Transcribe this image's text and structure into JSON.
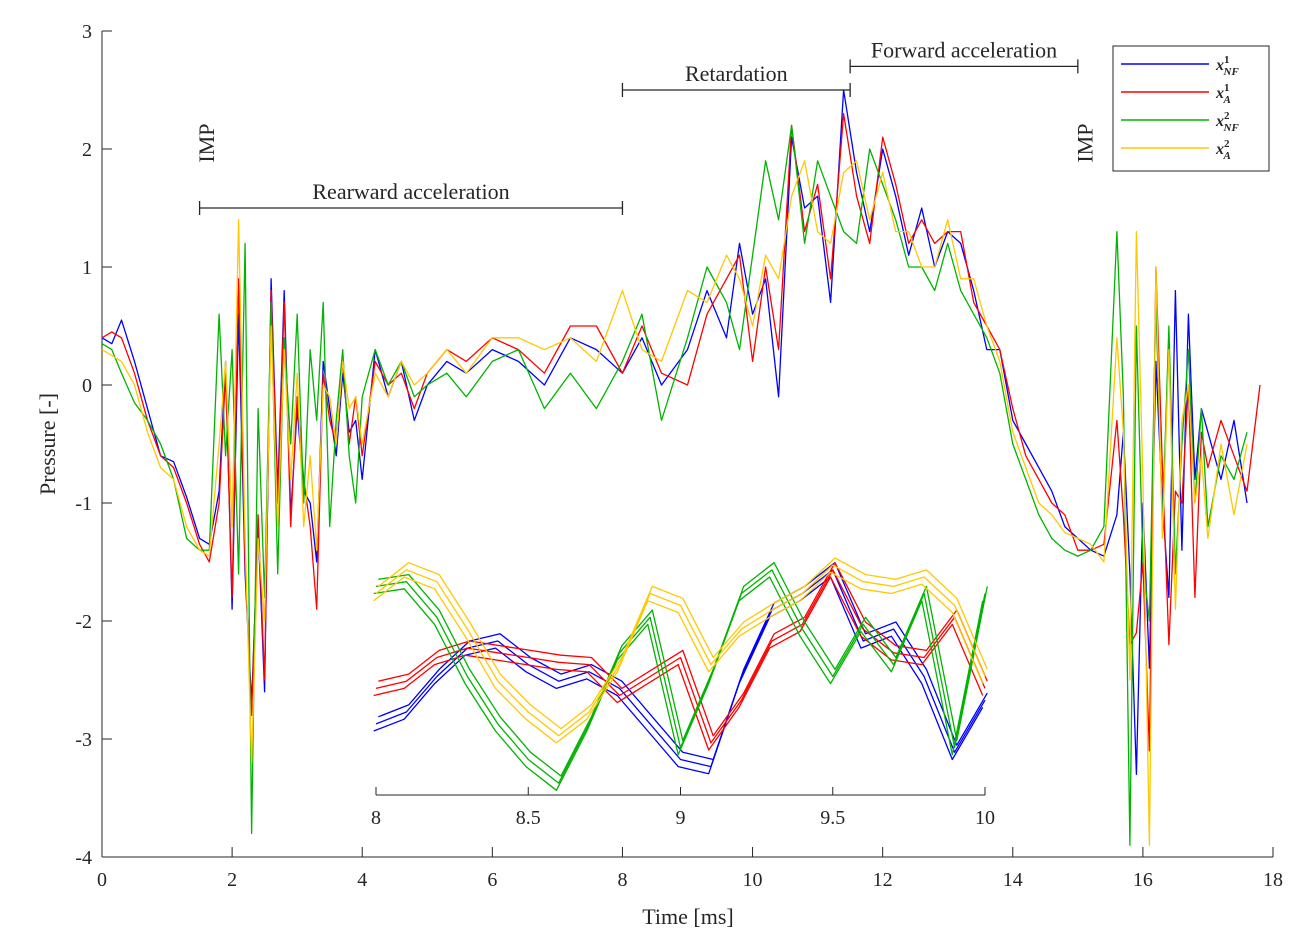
{
  "chart_data": [
    {
      "type": "line",
      "xlabel": "Time [ms]",
      "ylabel": "Pressure [-]",
      "xlim": [
        0,
        18
      ],
      "ylim": [
        -4,
        3
      ],
      "xticks": [
        "0",
        "2",
        "4",
        "6",
        "8",
        "10",
        "12",
        "14",
        "16",
        "18"
      ],
      "yticks": [
        "3",
        "2",
        "1",
        "0",
        "-1",
        "-2",
        "-3",
        "-4"
      ],
      "grid": false,
      "legend_placement": "top-right",
      "legend": {
        "entries": [
          {
            "base": "x",
            "sup": "1",
            "sub": "NF",
            "color": "#0000ff"
          },
          {
            "base": "x",
            "sup": "1",
            "sub": "A",
            "color": "#ff0000"
          },
          {
            "base": "x",
            "sup": "2",
            "sub": "NF",
            "color": "#00b400"
          },
          {
            "base": "x",
            "sup": "2",
            "sub": "A",
            "color": "#ffc800"
          }
        ]
      },
      "annotations": [
        {
          "text": "IMP",
          "x": 1.6,
          "y": 2.05,
          "rotation": -90
        },
        {
          "text": "IMP",
          "x": 15.1,
          "y": 2.05,
          "rotation": -90
        },
        {
          "text": "Rearward acceleration",
          "bracket": [
            1.5,
            8.0
          ],
          "y": 1.5
        },
        {
          "text": "Retardation",
          "bracket": [
            8.0,
            11.5
          ],
          "y": 2.5
        },
        {
          "text": "Forward acceleration",
          "bracket": [
            11.5,
            15.0
          ],
          "y": 2.7
        }
      ],
      "series": [
        {
          "color": "#0000ff",
          "x": [
            0,
            0.15,
            0.3,
            0.5,
            0.7,
            0.9,
            1.1,
            1.3,
            1.5,
            1.65,
            1.8,
            1.9,
            2.0,
            2.1,
            2.2,
            2.3,
            2.4,
            2.5,
            2.6,
            2.7,
            2.8,
            2.9,
            3.0,
            3.1,
            3.2,
            3.3,
            3.4,
            3.5,
            3.6,
            3.7,
            3.8,
            3.9,
            4.0,
            4.2,
            4.4,
            4.6,
            4.8,
            5.0,
            5.3,
            5.6,
            6.0,
            6.4,
            6.8,
            7.2,
            7.6,
            8.0,
            8.3,
            8.6,
            9.0,
            9.3,
            9.6,
            9.8,
            10.0,
            10.2,
            10.4,
            10.6,
            10.8,
            11.0,
            11.2,
            11.4,
            11.6,
            11.8,
            12.0,
            12.2,
            12.4,
            12.6,
            12.8,
            13.0,
            13.2,
            13.4,
            13.6,
            13.8,
            14.0,
            14.2,
            14.4,
            14.6,
            14.8,
            15.0,
            15.2,
            15.4,
            15.6,
            15.7,
            15.8,
            15.9,
            16.0,
            16.1,
            16.2,
            16.3,
            16.4,
            16.5,
            16.6,
            16.7,
            16.8,
            16.9,
            17.0,
            17.2,
            17.4,
            17.6
          ],
          "values": [
            0.4,
            0.35,
            0.55,
            0.2,
            -0.2,
            -0.6,
            -0.65,
            -0.95,
            -1.3,
            -1.35,
            -0.9,
            0.2,
            -1.9,
            0.6,
            -1.6,
            -2.7,
            -1.2,
            -2.6,
            0.9,
            -0.9,
            0.8,
            -1.1,
            -0.2,
            -0.9,
            -1.0,
            -1.5,
            0.2,
            -0.2,
            -0.6,
            0.1,
            -0.4,
            -0.3,
            -0.8,
            0.3,
            -0.1,
            0.2,
            -0.3,
            0.0,
            0.2,
            0.1,
            0.3,
            0.2,
            0.0,
            0.4,
            0.3,
            0.1,
            0.4,
            0.0,
            0.3,
            0.8,
            0.4,
            1.2,
            0.6,
            0.9,
            -0.1,
            2.1,
            1.5,
            1.6,
            0.7,
            2.5,
            1.8,
            1.3,
            2.0,
            1.6,
            1.1,
            1.5,
            1.0,
            1.3,
            1.2,
            0.8,
            0.3,
            0.3,
            -0.3,
            -0.5,
            -0.7,
            -0.9,
            -1.2,
            -1.3,
            -1.4,
            -1.45,
            -1.1,
            -0.4,
            -1.6,
            -3.3,
            -1.0,
            -2.4,
            0.2,
            -1.0,
            -1.8,
            0.8,
            -1.4,
            0.6,
            -0.8,
            -0.2,
            -0.4,
            -0.8,
            -0.3,
            -1.0
          ]
        },
        {
          "color": "#ff0000",
          "x": [
            0,
            0.15,
            0.3,
            0.5,
            0.7,
            0.9,
            1.1,
            1.3,
            1.5,
            1.65,
            1.8,
            1.9,
            2.0,
            2.1,
            2.2,
            2.3,
            2.4,
            2.5,
            2.6,
            2.7,
            2.8,
            2.9,
            3.0,
            3.1,
            3.2,
            3.3,
            3.4,
            3.5,
            3.6,
            3.7,
            3.8,
            3.9,
            4.0,
            4.2,
            4.4,
            4.6,
            4.8,
            5.0,
            5.3,
            5.6,
            6.0,
            6.4,
            6.8,
            7.2,
            7.6,
            8.0,
            8.3,
            8.6,
            9.0,
            9.3,
            9.6,
            9.8,
            10.0,
            10.2,
            10.4,
            10.6,
            10.8,
            11.0,
            11.2,
            11.4,
            11.6,
            11.8,
            12.0,
            12.2,
            12.4,
            12.6,
            12.8,
            13.0,
            13.2,
            13.4,
            13.6,
            13.8,
            14.0,
            14.2,
            14.4,
            14.6,
            14.8,
            15.0,
            15.2,
            15.4,
            15.6,
            15.7,
            15.8,
            15.9,
            16.0,
            16.1,
            16.2,
            16.3,
            16.4,
            16.5,
            16.6,
            16.7,
            16.8,
            16.9,
            17.0,
            17.2,
            17.4,
            17.6,
            17.8
          ],
          "values": [
            0.4,
            0.45,
            0.4,
            0.1,
            -0.3,
            -0.6,
            -0.7,
            -1.0,
            -1.35,
            -1.5,
            -1.0,
            0.1,
            -1.8,
            0.9,
            -1.5,
            -2.8,
            -1.1,
            -2.5,
            0.8,
            -1.0,
            0.7,
            -1.2,
            -0.1,
            -0.8,
            -1.2,
            -1.9,
            0.1,
            -0.3,
            -0.5,
            0.2,
            -0.5,
            -0.1,
            -0.6,
            0.2,
            0.0,
            0.1,
            -0.2,
            0.1,
            0.3,
            0.2,
            0.4,
            0.3,
            0.1,
            0.5,
            0.5,
            0.1,
            0.5,
            0.1,
            0.0,
            0.6,
            0.9,
            1.1,
            0.2,
            1.0,
            0.3,
            2.2,
            1.3,
            1.7,
            0.9,
            2.3,
            1.6,
            1.2,
            2.1,
            1.7,
            1.2,
            1.4,
            1.2,
            1.3,
            1.3,
            0.7,
            0.5,
            0.3,
            -0.2,
            -0.6,
            -0.8,
            -1.0,
            -1.1,
            -1.4,
            -1.4,
            -1.35,
            -0.3,
            -1.1,
            -2.2,
            -2.1,
            -1.5,
            -3.1,
            1.0,
            -0.7,
            -2.2,
            -0.9,
            -1.0,
            0.0,
            -1.8,
            -0.4,
            -0.7,
            -0.3,
            -0.6,
            -0.9,
            0.0
          ]
        },
        {
          "color": "#00b400",
          "x": [
            0,
            0.15,
            0.3,
            0.5,
            0.7,
            0.9,
            1.1,
            1.3,
            1.5,
            1.65,
            1.8,
            1.9,
            2.0,
            2.1,
            2.2,
            2.3,
            2.4,
            2.5,
            2.6,
            2.7,
            2.8,
            2.9,
            3.0,
            3.1,
            3.2,
            3.3,
            3.4,
            3.5,
            3.6,
            3.7,
            3.8,
            3.9,
            4.0,
            4.2,
            4.4,
            4.6,
            4.8,
            5.0,
            5.3,
            5.6,
            6.0,
            6.4,
            6.8,
            7.2,
            7.6,
            8.0,
            8.3,
            8.6,
            9.0,
            9.3,
            9.6,
            9.8,
            10.0,
            10.2,
            10.4,
            10.6,
            10.8,
            11.0,
            11.2,
            11.4,
            11.6,
            11.8,
            12.0,
            12.2,
            12.4,
            12.6,
            12.8,
            13.0,
            13.2,
            13.4,
            13.6,
            13.8,
            14.0,
            14.2,
            14.4,
            14.6,
            14.8,
            15.0,
            15.2,
            15.4,
            15.6,
            15.7,
            15.8,
            15.9,
            16.0,
            16.1,
            16.2,
            16.3,
            16.4,
            16.5,
            16.6,
            16.7,
            16.8,
            16.9,
            17.0,
            17.2,
            17.4,
            17.6
          ],
          "values": [
            0.35,
            0.3,
            0.1,
            -0.15,
            -0.3,
            -0.5,
            -0.8,
            -1.3,
            -1.4,
            -1.4,
            0.6,
            -0.6,
            0.3,
            -1.6,
            1.2,
            -3.8,
            -0.2,
            -1.8,
            0.7,
            -1.6,
            0.4,
            -0.5,
            0.6,
            -1.0,
            0.3,
            -0.3,
            0.7,
            -1.2,
            -0.3,
            0.3,
            -0.6,
            -1.0,
            -0.1,
            0.3,
            0.0,
            0.2,
            -0.1,
            0.0,
            0.1,
            -0.1,
            0.2,
            0.3,
            -0.2,
            0.1,
            -0.2,
            0.2,
            0.6,
            -0.3,
            0.4,
            1.0,
            0.7,
            0.3,
            1.1,
            1.9,
            1.4,
            2.2,
            1.2,
            1.9,
            1.6,
            1.3,
            1.2,
            2.0,
            1.7,
            1.4,
            1.0,
            1.0,
            0.8,
            1.2,
            0.8,
            0.6,
            0.4,
            0.1,
            -0.5,
            -0.8,
            -1.1,
            -1.3,
            -1.4,
            -1.45,
            -1.4,
            -1.2,
            1.3,
            -0.1,
            -3.9,
            0.5,
            -1.5,
            -2.0,
            0.7,
            -1.2,
            0.5,
            -1.6,
            -0.5,
            0.3,
            -1.0,
            -0.2,
            -1.2,
            -0.6,
            -0.8,
            -0.4
          ]
        },
        {
          "color": "#ffc800",
          "x": [
            0,
            0.15,
            0.3,
            0.5,
            0.7,
            0.9,
            1.1,
            1.3,
            1.5,
            1.65,
            1.8,
            1.9,
            2.0,
            2.1,
            2.2,
            2.3,
            2.4,
            2.5,
            2.6,
            2.7,
            2.8,
            2.9,
            3.0,
            3.1,
            3.2,
            3.3,
            3.4,
            3.5,
            3.6,
            3.7,
            3.8,
            3.9,
            4.0,
            4.2,
            4.4,
            4.6,
            4.8,
            5.0,
            5.3,
            5.6,
            6.0,
            6.4,
            6.8,
            7.2,
            7.6,
            8.0,
            8.3,
            8.6,
            9.0,
            9.3,
            9.6,
            9.8,
            10.0,
            10.2,
            10.4,
            10.6,
            10.8,
            11.0,
            11.2,
            11.4,
            11.6,
            11.8,
            12.0,
            12.2,
            12.4,
            12.6,
            12.8,
            13.0,
            13.2,
            13.4,
            13.6,
            13.8,
            14.0,
            14.2,
            14.4,
            14.6,
            14.8,
            15.0,
            15.2,
            15.4,
            15.6,
            15.7,
            15.8,
            15.9,
            16.0,
            16.1,
            16.2,
            16.3,
            16.4,
            16.5,
            16.6,
            16.7,
            16.8,
            16.9,
            17.0,
            17.2,
            17.4,
            17.6
          ],
          "values": [
            0.3,
            0.25,
            0.2,
            0.0,
            -0.4,
            -0.7,
            -0.8,
            -1.2,
            -1.4,
            -1.45,
            -0.5,
            0.2,
            -1.2,
            1.4,
            -1.3,
            -3.2,
            -1.3,
            -2.0,
            0.5,
            -1.2,
            0.3,
            -0.8,
            0.1,
            -1.2,
            -0.6,
            -1.4,
            0.0,
            -0.1,
            -0.5,
            0.2,
            -0.2,
            -0.1,
            -0.5,
            0.1,
            -0.1,
            0.2,
            0.0,
            0.1,
            0.3,
            0.1,
            0.4,
            0.4,
            0.3,
            0.4,
            0.2,
            0.8,
            0.3,
            0.2,
            0.8,
            0.7,
            1.1,
            0.9,
            0.5,
            1.1,
            0.9,
            1.6,
            1.9,
            1.3,
            1.2,
            1.8,
            1.9,
            1.4,
            1.8,
            1.3,
            1.3,
            1.0,
            1.0,
            1.4,
            0.9,
            0.9,
            0.5,
            0.2,
            -0.4,
            -0.7,
            -1.0,
            -1.1,
            -1.25,
            -1.3,
            -1.35,
            -1.5,
            0.4,
            -0.4,
            -2.5,
            1.3,
            -0.8,
            -3.9,
            1.0,
            -1.3,
            0.3,
            -1.9,
            -0.3,
            0.0,
            -1.0,
            -0.6,
            -1.3,
            -0.5,
            -1.1,
            -0.5
          ]
        }
      ]
    },
    {
      "type": "line",
      "role": "inset",
      "xlim": [
        8,
        10
      ],
      "xticks": [
        "8",
        "8.5",
        "9",
        "9.5",
        "10"
      ],
      "yrange_normalized": [
        0,
        1
      ],
      "series": [
        {
          "color": "#0000ff",
          "x": [
            8.0,
            8.1,
            8.2,
            8.3,
            8.4,
            8.5,
            8.6,
            8.7,
            8.8,
            8.9,
            9.0,
            9.1,
            9.2,
            9.3,
            9.4,
            9.5,
            9.6,
            9.7,
            9.8,
            9.9,
            10.0
          ],
          "values": [
            0.3,
            0.35,
            0.5,
            0.62,
            0.65,
            0.55,
            0.48,
            0.52,
            0.45,
            0.3,
            0.15,
            0.12,
            0.5,
            0.78,
            0.85,
            0.95,
            0.65,
            0.7,
            0.5,
            0.18,
            0.4
          ]
        },
        {
          "color": "#ff0000",
          "x": [
            8.0,
            8.1,
            8.2,
            8.3,
            8.4,
            8.5,
            8.6,
            8.7,
            8.8,
            8.9,
            9.0,
            9.1,
            9.2,
            9.3,
            9.4,
            9.5,
            9.6,
            9.7,
            9.8,
            9.9,
            10.0
          ],
          "values": [
            0.45,
            0.48,
            0.58,
            0.62,
            0.6,
            0.58,
            0.56,
            0.55,
            0.42,
            0.5,
            0.58,
            0.22,
            0.4,
            0.65,
            0.72,
            0.95,
            0.7,
            0.6,
            0.58,
            0.75,
            0.45
          ]
        },
        {
          "color": "#00b400",
          "x": [
            8.0,
            8.1,
            8.2,
            8.3,
            8.4,
            8.5,
            8.6,
            8.7,
            8.8,
            8.9,
            9.0,
            9.1,
            9.2,
            9.3,
            9.4,
            9.5,
            9.6,
            9.7,
            9.8,
            9.9,
            10.0
          ],
          "values": [
            0.88,
            0.9,
            0.75,
            0.5,
            0.3,
            0.15,
            0.05,
            0.3,
            0.6,
            0.75,
            0.2,
            0.5,
            0.85,
            0.95,
            0.7,
            0.5,
            0.72,
            0.55,
            0.85,
            0.2,
            0.85
          ]
        },
        {
          "color": "#ffc800",
          "x": [
            8.0,
            8.1,
            8.2,
            8.3,
            8.4,
            8.5,
            8.6,
            8.7,
            8.8,
            8.9,
            9.0,
            9.1,
            9.2,
            9.3,
            9.4,
            9.5,
            9.6,
            9.7,
            9.8,
            9.9,
            10.0
          ],
          "values": [
            0.85,
            0.95,
            0.9,
            0.7,
            0.48,
            0.35,
            0.25,
            0.35,
            0.55,
            0.85,
            0.8,
            0.55,
            0.7,
            0.78,
            0.85,
            0.97,
            0.9,
            0.88,
            0.92,
            0.8,
            0.5
          ]
        }
      ]
    }
  ]
}
